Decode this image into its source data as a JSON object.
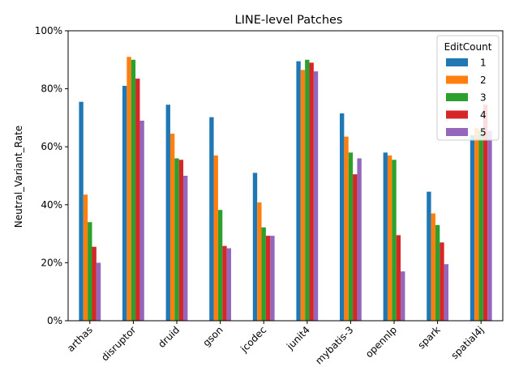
{
  "chart_data": {
    "type": "bar",
    "title": "LINE-level Patches",
    "xlabel": "",
    "ylabel": "Neutral_Variant_Rate",
    "ylim": [
      0,
      100
    ],
    "yticks": [
      "0%",
      "20%",
      "40%",
      "60%",
      "80%",
      "100%"
    ],
    "ytick_values": [
      0,
      20,
      40,
      60,
      80,
      100
    ],
    "grid": false,
    "legend": {
      "title": "EditCount",
      "placement": "top-right"
    },
    "categories": [
      "arthas",
      "disruptor",
      "druid",
      "gson",
      "jcodec",
      "junit4",
      "mybatis-3",
      "opennlp",
      "spark",
      "spatial4j"
    ],
    "series": [
      {
        "name": "1",
        "color": "#1f77b4",
        "values": [
          75.5,
          81.0,
          74.5,
          70.2,
          51.0,
          89.5,
          71.5,
          58.0,
          44.5,
          64.0
        ]
      },
      {
        "name": "2",
        "color": "#ff7f0e",
        "values": [
          43.5,
          91.0,
          64.5,
          57.0,
          40.8,
          86.5,
          63.5,
          57.0,
          37.0,
          66.5
        ]
      },
      {
        "name": "3",
        "color": "#2ca02c",
        "values": [
          34.0,
          90.0,
          56.0,
          38.2,
          32.2,
          90.0,
          58.0,
          55.5,
          33.0,
          65.5
        ]
      },
      {
        "name": "4",
        "color": "#d62728",
        "values": [
          25.5,
          83.5,
          55.5,
          25.8,
          29.3,
          89.0,
          50.5,
          29.5,
          27.0,
          74.5
        ]
      },
      {
        "name": "5",
        "color": "#9467bd",
        "values": [
          20.0,
          69.0,
          50.0,
          25.0,
          29.3,
          86.0,
          56.0,
          17.0,
          19.5,
          65.5
        ]
      }
    ]
  }
}
